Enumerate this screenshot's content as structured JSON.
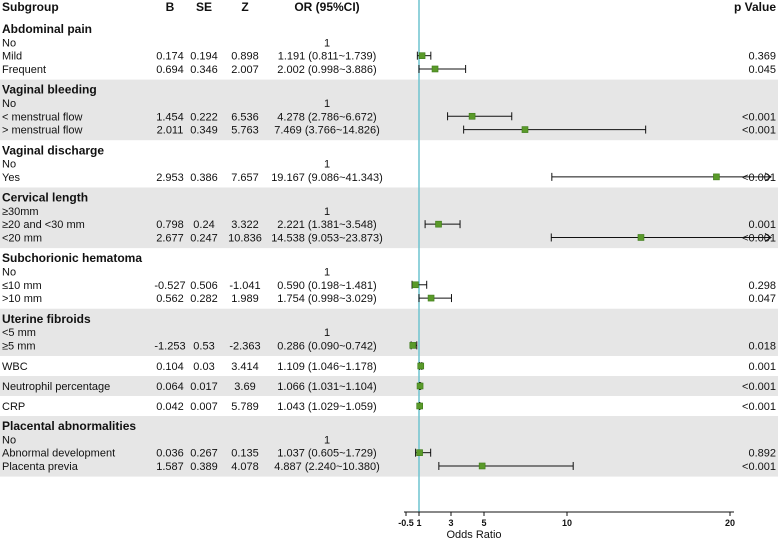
{
  "chart_data": {
    "type": "forest",
    "columns": {
      "subgroup": "Subgroup",
      "b": "B",
      "se": "SE",
      "z": "Z",
      "or": "OR (95%CI)",
      "p": "p Value"
    },
    "xlabel": "Odds Ratio",
    "xlim": [
      -0.5,
      20
    ],
    "xticks": [
      -0.5,
      1,
      3,
      5,
      10,
      20
    ],
    "reference_line": 1,
    "groups": [
      {
        "title": "Abdominal pain",
        "shaded": false,
        "rows": [
          {
            "label": "No",
            "b": "",
            "se": "",
            "z": "",
            "or_text": "1",
            "p": "",
            "or": null
          },
          {
            "label": "Mild",
            "b": "0.174",
            "se": "0.194",
            "z": "0.898",
            "or_text": "1.191 (0.811~1.739)",
            "p": "0.369",
            "or": 1.191,
            "low": 0.811,
            "high": 1.739
          },
          {
            "label": "Frequent",
            "b": "0.694",
            "se": "0.346",
            "z": "2.007",
            "or_text": "2.002 (0.998~3.886)",
            "p": "0.045",
            "or": 2.002,
            "low": 0.998,
            "high": 3.886
          }
        ]
      },
      {
        "title": "Vaginal bleeding",
        "shaded": true,
        "rows": [
          {
            "label": "No",
            "b": "",
            "se": "",
            "z": "",
            "or_text": "1",
            "p": "",
            "or": null
          },
          {
            "label": "< menstrual flow",
            "b": "1.454",
            "se": "0.222",
            "z": "6.536",
            "or_text": "4.278 (2.786~6.672)",
            "p": "<0.001",
            "or": 4.278,
            "low": 2.786,
            "high": 6.672
          },
          {
            "label": "> menstrual flow",
            "b": "2.011",
            "se": "0.349",
            "z": "5.763",
            "or_text": "7.469 (3.766~14.826)",
            "p": "<0.001",
            "or": 7.469,
            "low": 3.766,
            "high": 14.826
          }
        ]
      },
      {
        "title": "Vaginal discharge",
        "shaded": false,
        "rows": [
          {
            "label": "No",
            "b": "",
            "se": "",
            "z": "",
            "or_text": "1",
            "p": "",
            "or": null
          },
          {
            "label": "Yes",
            "b": "2.953",
            "se": "0.386",
            "z": "7.657",
            "or_text": "19.167 (9.086~41.343)",
            "p": "<0.001",
            "or": 19.167,
            "low": 9.086,
            "high": 41.343,
            "arrow": true
          }
        ]
      },
      {
        "title": "Cervical length",
        "shaded": true,
        "rows": [
          {
            "label": "≥30mm",
            "b": "",
            "se": "",
            "z": "",
            "or_text": "1",
            "p": "",
            "or": null
          },
          {
            "label": "≥20 and <30 mm",
            "b": "0.798",
            "se": "0.24",
            "z": "3.322",
            "or_text": "2.221 (1.381~3.548)",
            "p": "0.001",
            "or": 2.221,
            "low": 1.381,
            "high": 3.548
          },
          {
            "label": "<20 mm",
            "b": "2.677",
            "se": "0.247",
            "z": "10.836",
            "or_text": "14.538 (9.053~23.873)",
            "p": "<0.001",
            "or": 14.538,
            "low": 9.053,
            "high": 23.873,
            "arrow": true
          }
        ]
      },
      {
        "title": "Subchorionic hematoma",
        "shaded": false,
        "rows": [
          {
            "label": "No",
            "b": "",
            "se": "",
            "z": "",
            "or_text": "1",
            "p": "",
            "or": null
          },
          {
            "label": "≤10 mm",
            "b": "-0.527",
            "se": "0.506",
            "z": "-1.041",
            "or_text": "0.590 (0.198~1.481)",
            "p": "0.298",
            "or": 0.59,
            "low": 0.198,
            "high": 1.481
          },
          {
            "label": ">10 mm",
            "b": "0.562",
            "se": "0.282",
            "z": "1.989",
            "or_text": "1.754 (0.998~3.029)",
            "p": "0.047",
            "or": 1.754,
            "low": 0.998,
            "high": 3.029
          }
        ]
      },
      {
        "title": "Uterine fibroids",
        "shaded": true,
        "rows": [
          {
            "label": "<5 mm",
            "b": "",
            "se": "",
            "z": "",
            "or_text": "1",
            "p": "",
            "or": null
          },
          {
            "label": "≥5 mm",
            "b": "-1.253",
            "se": "0.53",
            "z": "-2.363",
            "or_text": "0.286 (0.090~0.742)",
            "p": "0.018",
            "or": 0.286,
            "low": 0.09,
            "high": 0.742
          }
        ]
      },
      {
        "title": null,
        "shaded": false,
        "rows": [
          {
            "label": "WBC",
            "b": "0.104",
            "se": "0.03",
            "z": "3.414",
            "or_text": "1.109 (1.046~1.178)",
            "p": "0.001",
            "or": 1.109,
            "low": 1.046,
            "high": 1.178
          }
        ]
      },
      {
        "title": null,
        "shaded": true,
        "rows": [
          {
            "label": "Neutrophil percentage",
            "b": "0.064",
            "se": "0.017",
            "z": "3.69",
            "or_text": "1.066 (1.031~1.104)",
            "p": "<0.001",
            "or": 1.066,
            "low": 1.031,
            "high": 1.104
          }
        ]
      },
      {
        "title": null,
        "shaded": false,
        "rows": [
          {
            "label": "CRP",
            "b": "0.042",
            "se": "0.007",
            "z": "5.789",
            "or_text": "1.043 (1.029~1.059)",
            "p": "<0.001",
            "or": 1.043,
            "low": 1.029,
            "high": 1.059
          }
        ]
      },
      {
        "title": "Placental abnormalities",
        "shaded": true,
        "rows": [
          {
            "label": "No",
            "b": "",
            "se": "",
            "z": "",
            "or_text": "1",
            "p": "",
            "or": null
          },
          {
            "label": "Abnormal development",
            "b": "0.036",
            "se": "0.267",
            "z": "0.135",
            "or_text": "1.037 (0.605~1.729)",
            "p": "0.892",
            "or": 1.037,
            "low": 0.605,
            "high": 1.729
          },
          {
            "label": "Placenta previa",
            "b": "1.587",
            "se": "0.389",
            "z": "4.078",
            "or_text": "4.887 (2.240~10.380)",
            "p": "<0.001",
            "or": 4.887,
            "low": 2.24,
            "high": 10.38
          }
        ]
      }
    ],
    "colors": {
      "marker": "#5a9a2a",
      "marker_border": "#3d7a18",
      "reference_line": "#6fc3cf",
      "shade": "#e6e6e6",
      "whisker": "#111111"
    }
  }
}
